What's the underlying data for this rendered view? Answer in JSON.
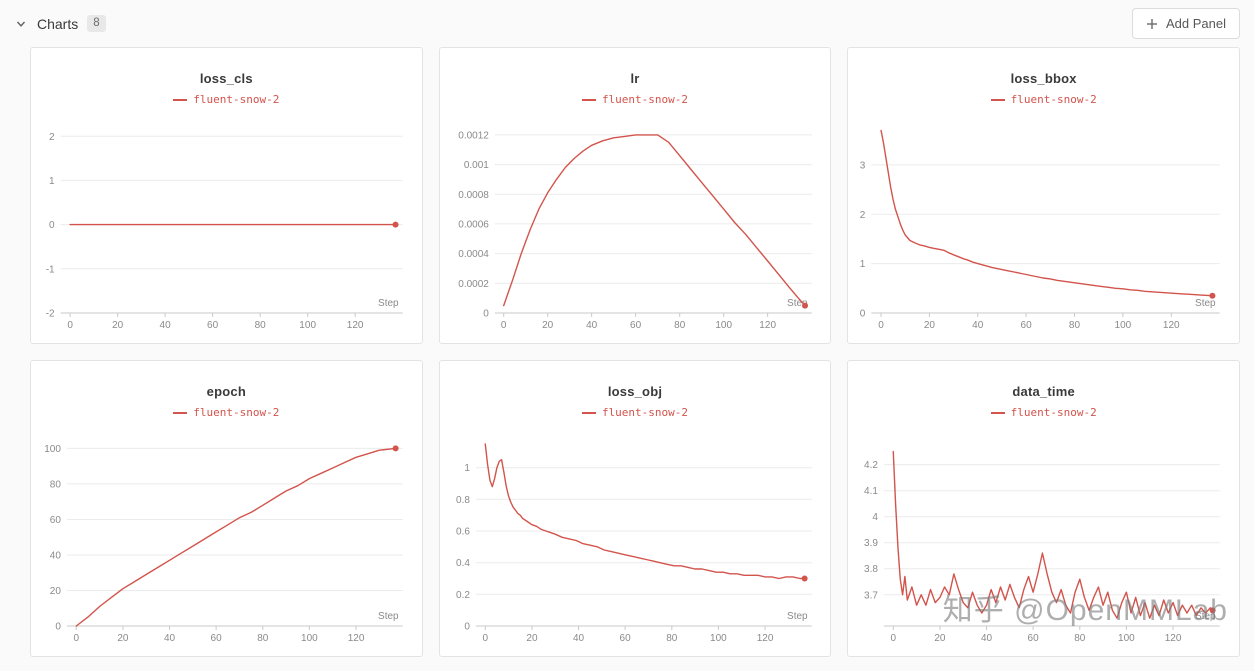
{
  "page": {
    "bg": "#fafafa",
    "panel_bg": "#ffffff",
    "accent": "#d2544c",
    "grid_line": "#ebebeb",
    "axis_line": "#c9c9c9",
    "label_color": "#8a8a8a"
  },
  "header": {
    "section_label": "Charts",
    "count": "8",
    "add_panel_label": "Add Panel"
  },
  "watermark": "知乎 @OpenMMLab",
  "chart_data": [
    {
      "type": "line",
      "title": "loss_cls",
      "series_name": "fluent-snow-2",
      "xlabel": "Step",
      "xlim": [
        -4,
        140
      ],
      "ylim": [
        -2,
        2.3
      ],
      "x_ticks": [
        0,
        20,
        40,
        60,
        80,
        100,
        120
      ],
      "y_ticks": [
        {
          "v": -2,
          "label": "-2"
        },
        {
          "v": -1,
          "label": "-1"
        },
        {
          "v": 0,
          "label": "0"
        },
        {
          "v": 1,
          "label": "1"
        },
        {
          "v": 2,
          "label": "2"
        }
      ],
      "points": [
        [
          0,
          0
        ],
        [
          20,
          0
        ],
        [
          40,
          0
        ],
        [
          60,
          0
        ],
        [
          80,
          0
        ],
        [
          100,
          0
        ],
        [
          120,
          0
        ],
        [
          137,
          0
        ]
      ]
    },
    {
      "type": "line",
      "title": "lr",
      "series_name": "fluent-snow-2",
      "xlabel": "Step",
      "xlim": [
        -4,
        140
      ],
      "ylim": [
        0,
        0.00128
      ],
      "x_ticks": [
        0,
        20,
        40,
        60,
        80,
        100,
        120
      ],
      "y_ticks": [
        {
          "v": 0,
          "label": "0"
        },
        {
          "v": 0.0002,
          "label": "0.0002"
        },
        {
          "v": 0.0004,
          "label": "0.0004"
        },
        {
          "v": 0.0006,
          "label": "0.0006"
        },
        {
          "v": 0.0008,
          "label": "0.0008"
        },
        {
          "v": 0.001,
          "label": "0.001"
        },
        {
          "v": 0.0012,
          "label": "0.0012"
        }
      ],
      "points": [
        [
          0,
          5e-05
        ],
        [
          4,
          0.00022
        ],
        [
          8,
          0.0004
        ],
        [
          12,
          0.00056
        ],
        [
          16,
          0.0007
        ],
        [
          20,
          0.00081
        ],
        [
          24,
          0.0009
        ],
        [
          28,
          0.00098
        ],
        [
          32,
          0.00104
        ],
        [
          36,
          0.00109
        ],
        [
          40,
          0.00113
        ],
        [
          45,
          0.00116
        ],
        [
          50,
          0.00118
        ],
        [
          55,
          0.00119
        ],
        [
          60,
          0.0012
        ],
        [
          65,
          0.0012
        ],
        [
          70,
          0.0012
        ],
        [
          75,
          0.00115
        ],
        [
          80,
          0.00106
        ],
        [
          85,
          0.00097
        ],
        [
          90,
          0.00088
        ],
        [
          95,
          0.00079
        ],
        [
          100,
          0.0007
        ],
        [
          105,
          0.00061
        ],
        [
          110,
          0.00053
        ],
        [
          115,
          0.00044
        ],
        [
          120,
          0.00035
        ],
        [
          125,
          0.00026
        ],
        [
          130,
          0.00017
        ],
        [
          134,
          0.0001
        ],
        [
          137,
          5e-05
        ]
      ]
    },
    {
      "type": "line",
      "title": "loss_bbox",
      "series_name": "fluent-snow-2",
      "xlabel": "Step",
      "xlim": [
        -4,
        140
      ],
      "ylim": [
        0,
        3.85
      ],
      "x_ticks": [
        0,
        20,
        40,
        60,
        80,
        100,
        120
      ],
      "y_ticks": [
        {
          "v": 0,
          "label": "0"
        },
        {
          "v": 1,
          "label": "1"
        },
        {
          "v": 2,
          "label": "2"
        },
        {
          "v": 3,
          "label": "3"
        }
      ],
      "points": [
        [
          0,
          3.7
        ],
        [
          1,
          3.45
        ],
        [
          2,
          3.15
        ],
        [
          3,
          2.85
        ],
        [
          4,
          2.55
        ],
        [
          5,
          2.3
        ],
        [
          6,
          2.1
        ],
        [
          7,
          1.95
        ],
        [
          8,
          1.8
        ],
        [
          9,
          1.68
        ],
        [
          10,
          1.58
        ],
        [
          12,
          1.47
        ],
        [
          14,
          1.42
        ],
        [
          16,
          1.38
        ],
        [
          18,
          1.36
        ],
        [
          20,
          1.33
        ],
        [
          22,
          1.31
        ],
        [
          24,
          1.29
        ],
        [
          26,
          1.27
        ],
        [
          28,
          1.22
        ],
        [
          30,
          1.18
        ],
        [
          32,
          1.14
        ],
        [
          34,
          1.1
        ],
        [
          36,
          1.07
        ],
        [
          38,
          1.03
        ],
        [
          40,
          1.0
        ],
        [
          43,
          0.96
        ],
        [
          46,
          0.92
        ],
        [
          49,
          0.89
        ],
        [
          52,
          0.86
        ],
        [
          55,
          0.83
        ],
        [
          58,
          0.8
        ],
        [
          61,
          0.77
        ],
        [
          64,
          0.74
        ],
        [
          67,
          0.71
        ],
        [
          70,
          0.69
        ],
        [
          73,
          0.66
        ],
        [
          76,
          0.64
        ],
        [
          79,
          0.62
        ],
        [
          82,
          0.6
        ],
        [
          85,
          0.58
        ],
        [
          88,
          0.56
        ],
        [
          91,
          0.54
        ],
        [
          94,
          0.52
        ],
        [
          97,
          0.5
        ],
        [
          100,
          0.49
        ],
        [
          103,
          0.47
        ],
        [
          106,
          0.46
        ],
        [
          109,
          0.44
        ],
        [
          112,
          0.43
        ],
        [
          115,
          0.42
        ],
        [
          118,
          0.41
        ],
        [
          121,
          0.4
        ],
        [
          124,
          0.39
        ],
        [
          127,
          0.38
        ],
        [
          130,
          0.37
        ],
        [
          133,
          0.36
        ],
        [
          137,
          0.35
        ]
      ]
    },
    {
      "type": "line",
      "title": "epoch",
      "series_name": "fluent-snow-2",
      "xlabel": "Step",
      "xlim": [
        -4,
        140
      ],
      "ylim": [
        0,
        107
      ],
      "x_ticks": [
        0,
        20,
        40,
        60,
        80,
        100,
        120
      ],
      "y_ticks": [
        {
          "v": 0,
          "label": "0"
        },
        {
          "v": 20,
          "label": "20"
        },
        {
          "v": 40,
          "label": "40"
        },
        {
          "v": 60,
          "label": "60"
        },
        {
          "v": 80,
          "label": "80"
        },
        {
          "v": 100,
          "label": "100"
        }
      ],
      "points": [
        [
          0,
          0
        ],
        [
          5,
          5
        ],
        [
          10,
          11
        ],
        [
          15,
          16
        ],
        [
          20,
          21
        ],
        [
          25,
          25
        ],
        [
          30,
          29
        ],
        [
          35,
          33
        ],
        [
          40,
          37
        ],
        [
          45,
          41
        ],
        [
          50,
          45
        ],
        [
          55,
          49
        ],
        [
          60,
          53
        ],
        [
          65,
          57
        ],
        [
          70,
          61
        ],
        [
          75,
          64
        ],
        [
          80,
          68
        ],
        [
          85,
          72
        ],
        [
          90,
          76
        ],
        [
          95,
          79
        ],
        [
          100,
          83
        ],
        [
          105,
          86
        ],
        [
          110,
          89
        ],
        [
          115,
          92
        ],
        [
          120,
          95
        ],
        [
          125,
          97
        ],
        [
          130,
          99
        ],
        [
          137,
          100
        ]
      ]
    },
    {
      "type": "line",
      "title": "loss_obj",
      "series_name": "fluent-snow-2",
      "xlabel": "Step",
      "xlim": [
        -4,
        140
      ],
      "ylim": [
        0,
        1.2
      ],
      "x_ticks": [
        0,
        20,
        40,
        60,
        80,
        100,
        120
      ],
      "y_ticks": [
        {
          "v": 0,
          "label": "0"
        },
        {
          "v": 0.2,
          "label": "0.2"
        },
        {
          "v": 0.4,
          "label": "0.4"
        },
        {
          "v": 0.6,
          "label": "0.6"
        },
        {
          "v": 0.8,
          "label": "0.8"
        },
        {
          "v": 1,
          "label": "1"
        }
      ],
      "points": [
        [
          0,
          1.15
        ],
        [
          1,
          1.02
        ],
        [
          2,
          0.92
        ],
        [
          3,
          0.88
        ],
        [
          4,
          0.93
        ],
        [
          5,
          1.0
        ],
        [
          6,
          1.04
        ],
        [
          7,
          1.05
        ],
        [
          8,
          0.97
        ],
        [
          9,
          0.88
        ],
        [
          10,
          0.82
        ],
        [
          11,
          0.78
        ],
        [
          12,
          0.75
        ],
        [
          13,
          0.73
        ],
        [
          14,
          0.71
        ],
        [
          15,
          0.7
        ],
        [
          16,
          0.68
        ],
        [
          18,
          0.66
        ],
        [
          20,
          0.64
        ],
        [
          22,
          0.63
        ],
        [
          24,
          0.61
        ],
        [
          26,
          0.6
        ],
        [
          28,
          0.59
        ],
        [
          30,
          0.58
        ],
        [
          33,
          0.56
        ],
        [
          36,
          0.55
        ],
        [
          39,
          0.54
        ],
        [
          42,
          0.52
        ],
        [
          45,
          0.51
        ],
        [
          48,
          0.5
        ],
        [
          51,
          0.48
        ],
        [
          54,
          0.47
        ],
        [
          57,
          0.46
        ],
        [
          60,
          0.45
        ],
        [
          63,
          0.44
        ],
        [
          66,
          0.43
        ],
        [
          69,
          0.42
        ],
        [
          72,
          0.41
        ],
        [
          75,
          0.4
        ],
        [
          78,
          0.39
        ],
        [
          81,
          0.38
        ],
        [
          84,
          0.38
        ],
        [
          87,
          0.37
        ],
        [
          90,
          0.36
        ],
        [
          93,
          0.36
        ],
        [
          96,
          0.35
        ],
        [
          99,
          0.34
        ],
        [
          102,
          0.34
        ],
        [
          105,
          0.33
        ],
        [
          108,
          0.33
        ],
        [
          111,
          0.32
        ],
        [
          114,
          0.32
        ],
        [
          117,
          0.32
        ],
        [
          120,
          0.31
        ],
        [
          123,
          0.31
        ],
        [
          126,
          0.3
        ],
        [
          129,
          0.31
        ],
        [
          132,
          0.31
        ],
        [
          135,
          0.3
        ],
        [
          137,
          0.3
        ]
      ]
    },
    {
      "type": "line",
      "title": "data_time",
      "series_name": "fluent-snow-2",
      "xlabel": "Step",
      "xlim": [
        -4,
        140
      ],
      "ylim": [
        3.58,
        4.31
      ],
      "x_ticks": [
        0,
        20,
        40,
        60,
        80,
        100,
        120
      ],
      "y_ticks": [
        {
          "v": 3.7,
          "label": "3.7"
        },
        {
          "v": 3.8,
          "label": "3.8"
        },
        {
          "v": 3.9,
          "label": "3.9"
        },
        {
          "v": 4,
          "label": "4"
        },
        {
          "v": 4.1,
          "label": "4.1"
        },
        {
          "v": 4.2,
          "label": "4.2"
        }
      ],
      "points": [
        [
          0,
          4.25
        ],
        [
          1,
          4.05
        ],
        [
          2,
          3.88
        ],
        [
          3,
          3.76
        ],
        [
          4,
          3.7
        ],
        [
          5,
          3.77
        ],
        [
          6,
          3.68
        ],
        [
          8,
          3.73
        ],
        [
          10,
          3.66
        ],
        [
          12,
          3.7
        ],
        [
          14,
          3.66
        ],
        [
          16,
          3.72
        ],
        [
          18,
          3.67
        ],
        [
          20,
          3.69
        ],
        [
          22,
          3.73
        ],
        [
          24,
          3.7
        ],
        [
          26,
          3.78
        ],
        [
          28,
          3.72
        ],
        [
          30,
          3.67
        ],
        [
          32,
          3.65
        ],
        [
          34,
          3.71
        ],
        [
          36,
          3.66
        ],
        [
          38,
          3.63
        ],
        [
          40,
          3.66
        ],
        [
          42,
          3.72
        ],
        [
          44,
          3.67
        ],
        [
          46,
          3.73
        ],
        [
          48,
          3.68
        ],
        [
          50,
          3.74
        ],
        [
          52,
          3.69
        ],
        [
          54,
          3.65
        ],
        [
          56,
          3.72
        ],
        [
          58,
          3.77
        ],
        [
          60,
          3.71
        ],
        [
          62,
          3.78
        ],
        [
          64,
          3.86
        ],
        [
          66,
          3.78
        ],
        [
          68,
          3.71
        ],
        [
          70,
          3.67
        ],
        [
          72,
          3.72
        ],
        [
          74,
          3.66
        ],
        [
          76,
          3.63
        ],
        [
          78,
          3.71
        ],
        [
          80,
          3.76
        ],
        [
          82,
          3.69
        ],
        [
          84,
          3.64
        ],
        [
          86,
          3.69
        ],
        [
          88,
          3.73
        ],
        [
          90,
          3.66
        ],
        [
          92,
          3.71
        ],
        [
          94,
          3.64
        ],
        [
          96,
          3.61
        ],
        [
          98,
          3.67
        ],
        [
          100,
          3.71
        ],
        [
          102,
          3.63
        ],
        [
          104,
          3.69
        ],
        [
          106,
          3.62
        ],
        [
          108,
          3.67
        ],
        [
          110,
          3.61
        ],
        [
          112,
          3.66
        ],
        [
          114,
          3.62
        ],
        [
          116,
          3.68
        ],
        [
          118,
          3.63
        ],
        [
          120,
          3.67
        ],
        [
          122,
          3.62
        ],
        [
          124,
          3.66
        ],
        [
          126,
          3.63
        ],
        [
          128,
          3.66
        ],
        [
          130,
          3.62
        ],
        [
          132,
          3.65
        ],
        [
          134,
          3.63
        ],
        [
          136,
          3.65
        ],
        [
          137,
          3.64
        ]
      ]
    }
  ]
}
